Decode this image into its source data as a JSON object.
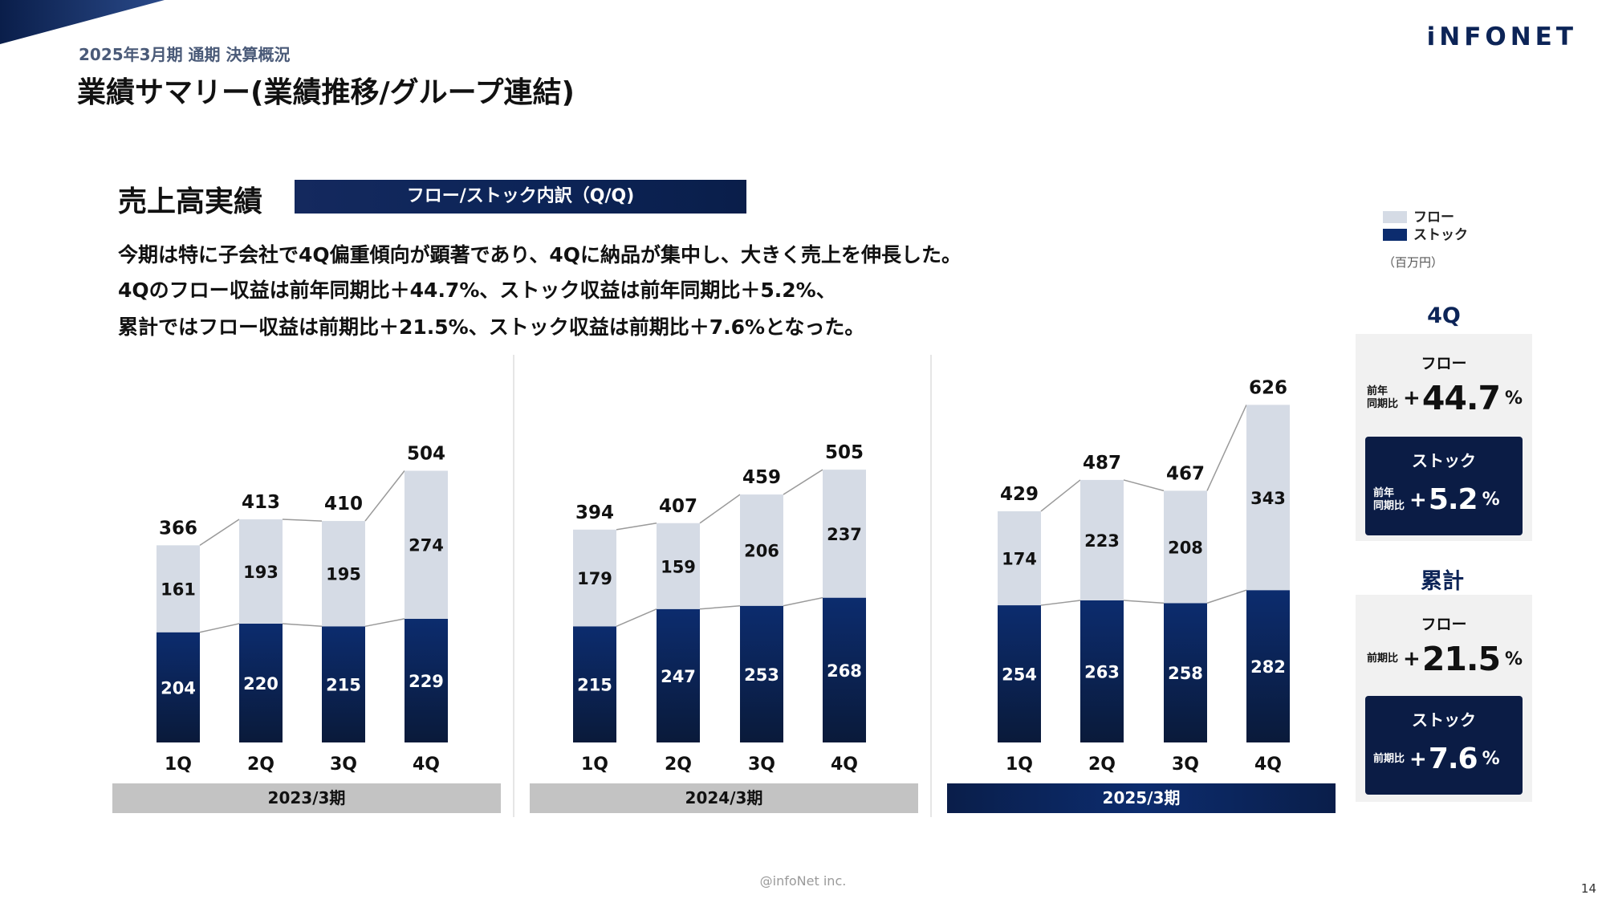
{
  "header": {
    "subtitle": "2025年3月期 通期 決算概況",
    "title": "業績サマリー(業績推移/グループ連結)",
    "logo": "iNFONET"
  },
  "section": {
    "heading": "売上高実績",
    "banner": "フロー/ストック内訳（Q/Q)"
  },
  "description": [
    "今期は特に子会社で4Q偏重傾向が顕著であり、4Qに納品が集中し、大きく売上を伸長した。",
    "4Qのフロー収益は前年同期比＋44.7%、ストック収益は前年同期比＋5.2%、",
    "累計ではフロー収益は前期比＋21.5%、ストック収益は前期比＋7.6%となった。"
  ],
  "legend": {
    "flow": "フロー",
    "stock": "ストック",
    "unit": "（百万円）"
  },
  "colors": {
    "flow": "#d5dbe5",
    "stock_top": "#0c2c6e",
    "stock_bottom": "#0a1a3a",
    "period_inactive": "#c3c3c3",
    "period_active": "#0c2457",
    "accent": "#0c2457"
  },
  "chart_data": {
    "type": "bar",
    "stacked": true,
    "categories": [
      "1Q",
      "2Q",
      "3Q",
      "4Q"
    ],
    "category_labels": [
      "1Q",
      "2Q",
      "3Q",
      "4Q",
      "1Q",
      "2Q",
      "3Q",
      "4Q",
      "1Q",
      "2Q",
      "3Q",
      "4Q"
    ],
    "legend_position": "top-right",
    "connector_lines": true,
    "periods": [
      {
        "label": "2023/3期",
        "stock": [
          204,
          220,
          215,
          229
        ],
        "flow": [
          161,
          193,
          195,
          274
        ],
        "total": [
          366,
          413,
          410,
          504
        ],
        "active": false
      },
      {
        "label": "2024/3期",
        "stock": [
          215,
          247,
          253,
          268
        ],
        "flow": [
          179,
          159,
          206,
          237
        ],
        "total": [
          394,
          407,
          459,
          505
        ],
        "active": false
      },
      {
        "label": "2025/3期",
        "stock": [
          254,
          263,
          258,
          282
        ],
        "flow": [
          174,
          223,
          208,
          343
        ],
        "total": [
          429,
          487,
          467,
          626
        ],
        "active": true
      }
    ]
  },
  "panels": {
    "q4": {
      "heading": "4Q",
      "flow_label": "フロー",
      "flow_comp": [
        "前年",
        "同期比"
      ],
      "flow_value": "44.7",
      "stock_label": "ストック",
      "stock_comp": [
        "前年",
        "同期比"
      ],
      "stock_value": "5.2"
    },
    "cumulative": {
      "heading": "累計",
      "flow_label": "フロー",
      "flow_comp": [
        "前期比"
      ],
      "flow_value": "21.5",
      "stock_label": "ストック",
      "stock_comp": [
        "前期比"
      ],
      "stock_value": "7.6"
    },
    "plus": "+",
    "pct": "%"
  },
  "footer": {
    "copyright": "@infoNet inc.",
    "page": "14"
  }
}
